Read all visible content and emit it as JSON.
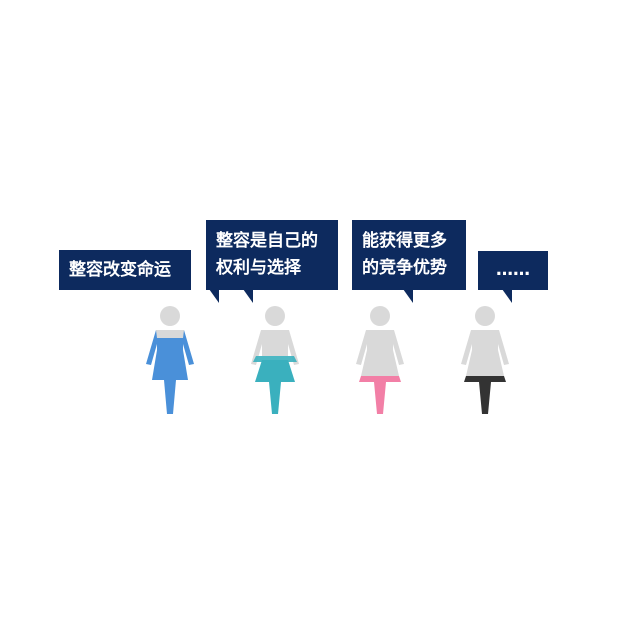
{
  "colors": {
    "bubble_bg": "#0d2a5e",
    "bubble_text": "#ffffff",
    "figure_gray": "#d9d9d9"
  },
  "figures": [
    {
      "speech": [
        "整容改变命运"
      ],
      "accent": "#4a90d9"
    },
    {
      "speech": [
        "整容是自己的",
        "权利与选择"
      ],
      "accent": "#3ab0be"
    },
    {
      "speech": [
        "能获得更多",
        "的竞争优势"
      ],
      "accent": "#f27fa6"
    },
    {
      "speech": [
        "……"
      ],
      "accent": "#333333"
    }
  ]
}
